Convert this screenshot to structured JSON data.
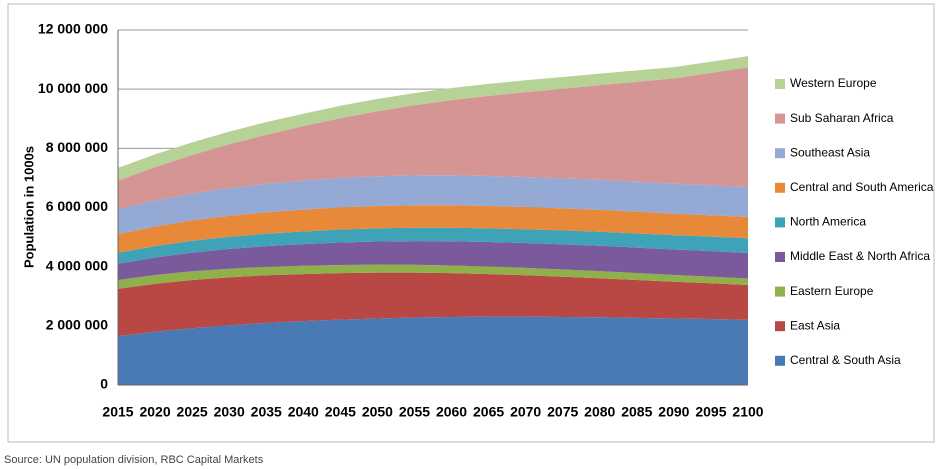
{
  "chart_data": {
    "type": "stacked-area",
    "y_label": "Population in 1000s",
    "source": "Source: UN population division, RBC Capital Markets",
    "categories": [
      "2015",
      "2020",
      "2025",
      "2030",
      "2035",
      "2040",
      "2045",
      "2050",
      "2055",
      "2060",
      "2065",
      "2070",
      "2075",
      "2080",
      "2085",
      "2090",
      "2095",
      "2100"
    ],
    "ylim": [
      0,
      12000000
    ],
    "yticks": [
      0,
      {
        "value": 2000000,
        "label": "2 000 000"
      },
      {
        "value": 4000000,
        "label": "4 000 000"
      },
      {
        "value": 6000000,
        "label": "6 000 000"
      },
      {
        "value": 8000000,
        "label": "8 000 000"
      },
      {
        "value": 10000000,
        "label": "10 000 000"
      },
      {
        "value": 12000000,
        "label": "12 000 000"
      }
    ],
    "grid": true,
    "legend": "right",
    "series": [
      {
        "name": "Central & South Asia",
        "color": "#4a7ab5",
        "values": [
          1650000,
          1800000,
          1920000,
          2020000,
          2100000,
          2160000,
          2210000,
          2250000,
          2280000,
          2300000,
          2310000,
          2310000,
          2300000,
          2290000,
          2270000,
          2250000,
          2230000,
          2200000
        ]
      },
      {
        "name": "East Asia",
        "color": "#b94744",
        "values": [
          1600000,
          1620000,
          1630000,
          1620000,
          1610000,
          1590000,
          1570000,
          1550000,
          1520000,
          1480000,
          1440000,
          1400000,
          1360000,
          1320000,
          1280000,
          1240000,
          1210000,
          1180000
        ]
      },
      {
        "name": "Eastern Europe",
        "color": "#8fb04a",
        "values": [
          300000,
          300000,
          295000,
          290000,
          285000,
          280000,
          275000,
          270000,
          265000,
          260000,
          255000,
          250000,
          245000,
          240000,
          235000,
          230000,
          225000,
          220000
        ]
      },
      {
        "name": "Middle East & North Africa",
        "color": "#7a5a9a",
        "values": [
          550000,
          590000,
          630000,
          670000,
          700000,
          730000,
          760000,
          780000,
          800000,
          820000,
          830000,
          840000,
          850000,
          855000,
          860000,
          860000,
          860000,
          860000
        ]
      },
      {
        "name": "North America",
        "color": "#3fa3b8",
        "values": [
          370000,
          385000,
          400000,
          410000,
          420000,
          430000,
          440000,
          445000,
          450000,
          455000,
          460000,
          465000,
          470000,
          475000,
          480000,
          485000,
          490000,
          500000
        ]
      },
      {
        "name": "Central and South America",
        "color": "#e8893a",
        "values": [
          630000,
          660000,
          690000,
          710000,
          725000,
          740000,
          750000,
          755000,
          760000,
          760000,
          755000,
          750000,
          745000,
          740000,
          735000,
          730000,
          725000,
          720000
        ]
      },
      {
        "name": "Southeast Asia",
        "color": "#94a9d4",
        "values": [
          850000,
          880000,
          910000,
          940000,
          960000,
          980000,
          995000,
          1005000,
          1010000,
          1015000,
          1015000,
          1015000,
          1015000,
          1015000,
          1010000,
          1010000,
          1010000,
          1010000
        ]
      },
      {
        "name": "Sub Saharan Africa",
        "color": "#d59595",
        "values": [
          960000,
          1130000,
          1300000,
          1480000,
          1660000,
          1840000,
          2020000,
          2200000,
          2370000,
          2540000,
          2710000,
          2870000,
          3030000,
          3200000,
          3380000,
          3560000,
          3800000,
          4050000
        ]
      },
      {
        "name": "Western Europe",
        "color": "#b6d296",
        "values": [
          430000,
          430000,
          428000,
          426000,
          424000,
          420000,
          418000,
          415000,
          412000,
          410000,
          405000,
          400000,
          395000,
          390000,
          385000,
          380000,
          378000,
          375000
        ]
      }
    ]
  }
}
